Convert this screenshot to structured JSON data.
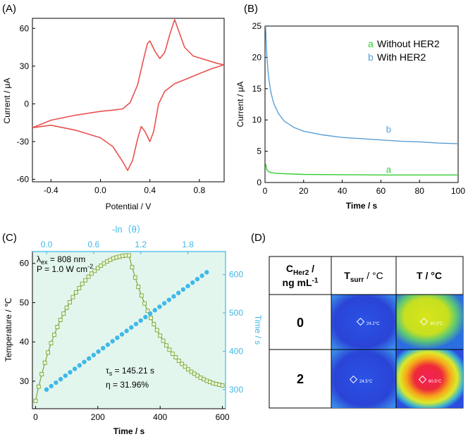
{
  "chart_data": [
    {
      "panel": "(A)",
      "type": "line",
      "xlabel": "Potential / V",
      "ylabel": "Current / μA",
      "xlim": [
        -0.55,
        1.0
      ],
      "ylim": [
        -62,
        68
      ],
      "xticks": [
        -0.4,
        0.0,
        0.4,
        0.8
      ],
      "xtick_labels": [
        "-0.4",
        "0.0",
        "0.4",
        "0.8"
      ],
      "yticks": [
        -60,
        -30,
        0,
        30,
        60
      ],
      "ytick_labels": [
        "-60",
        "-30",
        "0",
        "30",
        "60"
      ],
      "color": "#e8524f",
      "series": [
        {
          "name": "CV forward scan",
          "x": [
            -0.55,
            -0.4,
            -0.2,
            0.0,
            0.1,
            0.18,
            0.24,
            0.3,
            0.35,
            0.38,
            0.4,
            0.44,
            0.48,
            0.52,
            0.56,
            0.6,
            0.64,
            0.68,
            0.75,
            0.85,
            0.95,
            1.0
          ],
          "y": [
            -19,
            -13,
            -9,
            -6,
            -5,
            -4,
            1,
            15,
            36,
            48,
            50,
            42,
            36,
            41,
            55,
            67,
            56,
            45,
            38,
            35,
            32,
            31
          ]
        },
        {
          "name": "CV reverse scan",
          "x": [
            1.0,
            0.9,
            0.8,
            0.7,
            0.6,
            0.52,
            0.47,
            0.43,
            0.4,
            0.36,
            0.33,
            0.3,
            0.26,
            0.22,
            0.18,
            0.1,
            0.0,
            -0.2,
            -0.4,
            -0.55
          ],
          "y": [
            31,
            28,
            24,
            20,
            16,
            10,
            0,
            -22,
            -30,
            -22,
            -18,
            -28,
            -45,
            -53,
            -46,
            -34,
            -27,
            -21,
            -17,
            -19
          ]
        }
      ]
    },
    {
      "panel": "(B)",
      "type": "line",
      "xlabel": "Time / s",
      "ylabel": "Current / μA",
      "xlim": [
        0,
        100
      ],
      "ylim": [
        0,
        25
      ],
      "xticks": [
        0,
        20,
        40,
        60,
        80,
        100
      ],
      "xtick_labels": [
        "0",
        "20",
        "40",
        "60",
        "80",
        "100"
      ],
      "yticks": [
        0,
        5,
        10,
        15,
        20,
        25
      ],
      "ytick_labels": [
        "0",
        "5",
        "10",
        "15",
        "20",
        "25"
      ],
      "legend": [
        {
          "letter": "a",
          "label": "Without HER2",
          "color": "#33cc33"
        },
        {
          "letter": "b",
          "label": "With HER2",
          "color": "#5a9fd6"
        }
      ],
      "curve_labels": [
        {
          "text": "b",
          "x": 64,
          "y": 8.0,
          "color": "#5a9fd6"
        },
        {
          "text": "a",
          "x": 64,
          "y": 1.6,
          "color": "#33cc33"
        }
      ],
      "series": [
        {
          "name": "b",
          "color": "#5a9fd6",
          "x": [
            0.3,
            0.6,
            1,
            1.5,
            2,
            3,
            4,
            5,
            7,
            10,
            15,
            20,
            30,
            40,
            50,
            60,
            70,
            80,
            90,
            100
          ],
          "y": [
            25,
            22.5,
            20,
            18,
            16.5,
            14.5,
            13.2,
            12.3,
            11.0,
            9.8,
            8.8,
            8.2,
            7.6,
            7.2,
            7.0,
            6.8,
            6.6,
            6.5,
            6.3,
            6.2
          ]
        },
        {
          "name": "a",
          "color": "#33cc33",
          "x": [
            0.3,
            1,
            2,
            3,
            5,
            10,
            20,
            40,
            60,
            80,
            100
          ],
          "y": [
            3.0,
            2.0,
            1.7,
            1.6,
            1.5,
            1.4,
            1.3,
            1.25,
            1.2,
            1.2,
            1.2
          ]
        }
      ]
    },
    {
      "panel": "(C)",
      "type": "scatter",
      "xlabel": "Time / s",
      "ylabel": "Temperature / ℃",
      "top_xlabel": "-ln（θ）",
      "right_ylabel": "Time / s",
      "xlim": [
        -10,
        610
      ],
      "ylim": [
        23,
        63
      ],
      "top_xlim": [
        -0.18,
        2.28
      ],
      "right_ylim": [
        250,
        660
      ],
      "xticks": [
        0,
        200,
        400,
        600
      ],
      "xtick_labels": [
        "0",
        "200",
        "400",
        "600"
      ],
      "yticks": [
        30,
        40,
        50,
        60
      ],
      "ytick_labels": [
        "30",
        "40",
        "50",
        "60"
      ],
      "top_ticks": [
        0.0,
        0.6,
        1.2,
        1.8
      ],
      "top_tick_labels": [
        "0.0",
        "0.6",
        "1.2",
        "1.8"
      ],
      "right_ticks": [
        300,
        400,
        500,
        600
      ],
      "right_tick_labels": [
        "300",
        "400",
        "500",
        "600"
      ],
      "annotations": [
        "λex = 808 nm",
        "P = 1.0 W cm-2",
        "τs = 145.21 s",
        "η = 31.96%"
      ],
      "heating_color": "#7aa63a",
      "fit_color": "#3fb8e8",
      "temperature_curve": {
        "x": [
          0,
          10,
          20,
          30,
          40,
          50,
          60,
          70,
          80,
          90,
          100,
          110,
          120,
          130,
          140,
          150,
          160,
          170,
          180,
          190,
          200,
          210,
          220,
          230,
          240,
          250,
          260,
          270,
          280,
          290,
          300,
          310,
          320,
          330,
          340,
          350,
          360,
          370,
          380,
          390,
          400,
          410,
          420,
          430,
          440,
          450,
          460,
          470,
          480,
          490,
          500,
          510,
          520,
          530,
          540,
          550,
          560,
          570,
          580,
          590,
          600
        ],
        "y": [
          25.0,
          28.6,
          31.8,
          34.7,
          37.3,
          39.7,
          41.8,
          43.8,
          45.6,
          47.2,
          48.7,
          50.1,
          51.4,
          52.6,
          53.7,
          54.8,
          55.7,
          56.6,
          57.4,
          58.1,
          58.8,
          59.4,
          60.0,
          60.5,
          60.9,
          61.3,
          61.5,
          61.7,
          61.9,
          62.0,
          62.0,
          59.0,
          56.4,
          54.0,
          51.8,
          49.8,
          47.9,
          46.1,
          44.5,
          43.0,
          41.6,
          40.3,
          39.1,
          38.0,
          37.0,
          36.1,
          35.2,
          34.4,
          33.7,
          33.0,
          32.4,
          31.9,
          31.4,
          30.9,
          30.5,
          30.1,
          29.8,
          29.5,
          29.3,
          29.1,
          28.9
        ]
      },
      "fit_points": {
        "x": [
          0.0,
          0.06,
          0.12,
          0.18,
          0.24,
          0.3,
          0.36,
          0.42,
          0.48,
          0.54,
          0.6,
          0.66,
          0.72,
          0.78,
          0.84,
          0.9,
          0.96,
          1.02,
          1.08,
          1.14,
          1.2,
          1.26,
          1.32,
          1.38,
          1.44,
          1.5,
          1.56,
          1.62,
          1.68,
          1.74,
          1.8,
          1.86,
          1.92,
          1.98,
          2.04
        ],
        "y": [
          300,
          309,
          318,
          327,
          336,
          345,
          354,
          363,
          372,
          381,
          390,
          399,
          408,
          417,
          426,
          435,
          444,
          453,
          462,
          471,
          480,
          489,
          498,
          507,
          516,
          525,
          534,
          543,
          552,
          561,
          570,
          579,
          588,
          597,
          606
        ]
      }
    },
    {
      "panel": "(D)",
      "type": "table",
      "header": {
        "col1_line1": "C",
        "col1_sub": "Her2",
        "col1_line1_tail": " /",
        "col1_line2": "ng mL",
        "col1_sup": "-1",
        "col2": "T",
        "col2_sub": "surr",
        "col2_tail": " / °C",
        "col3": "T / °C"
      },
      "rows": [
        {
          "label": "0",
          "surr_readout": "24.2°C",
          "t_readout": "30.3°C"
        },
        {
          "label": "2",
          "surr_readout": "24.5°C",
          "t_readout": "60.5°C"
        }
      ]
    }
  ],
  "panel_labels": [
    "(A)",
    "(B)",
    "(C)",
    "(D)"
  ],
  "colors": {
    "axis": "#000000",
    "cv": "#e8524f",
    "blue_axis": "#3fb8e8"
  }
}
